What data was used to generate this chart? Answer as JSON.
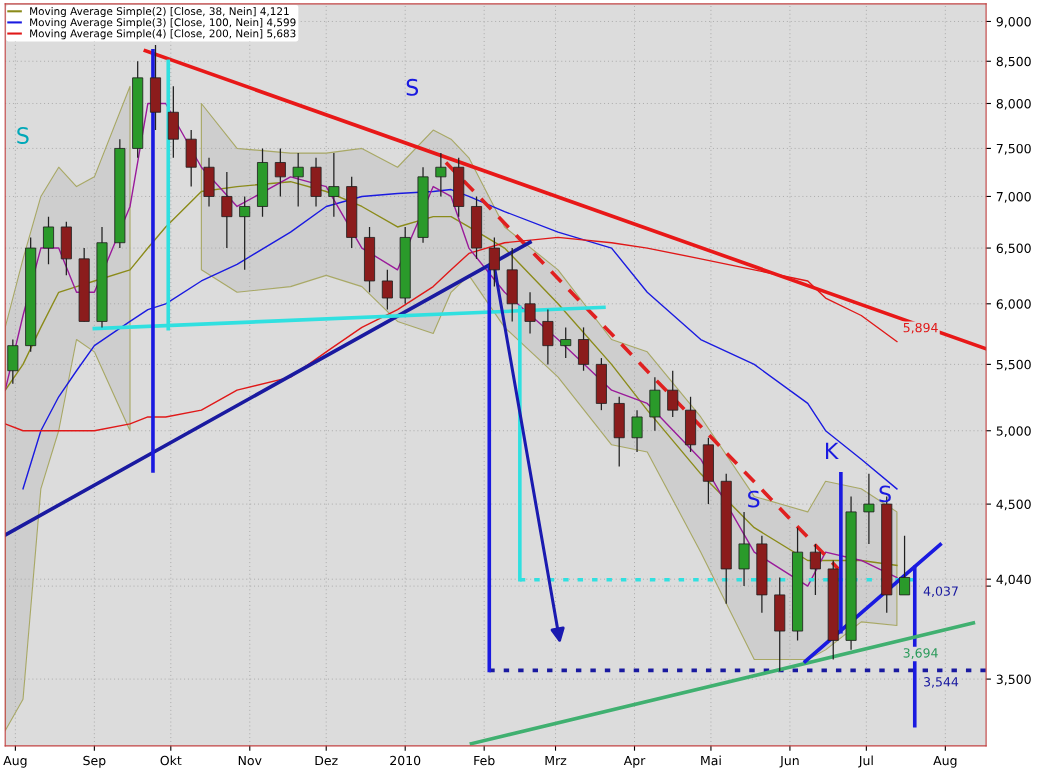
{
  "chart_data": {
    "type": "candlestick",
    "x": [
      "2009-07-31",
      "2009-08-07",
      "2009-08-14",
      "2009-08-21",
      "2009-08-28",
      "2009-09-04",
      "2009-09-11",
      "2009-09-18",
      "2009-09-25",
      "2009-10-02",
      "2009-10-09",
      "2009-10-16",
      "2009-10-23",
      "2009-10-30",
      "2009-11-06",
      "2009-11-13",
      "2009-11-20",
      "2009-11-27",
      "2009-12-04",
      "2009-12-11",
      "2009-12-18",
      "2009-12-25",
      "2010-01-01",
      "2010-01-08",
      "2010-01-15",
      "2010-01-22",
      "2010-01-29",
      "2010-02-05",
      "2010-02-12",
      "2010-02-19",
      "2010-02-26",
      "2010-03-05",
      "2010-03-12",
      "2010-03-19",
      "2010-03-26",
      "2010-04-02",
      "2010-04-09",
      "2010-04-16",
      "2010-04-23",
      "2010-04-30",
      "2010-05-07",
      "2010-05-14",
      "2010-05-21",
      "2010-05-28",
      "2010-06-04",
      "2010-06-11",
      "2010-06-18",
      "2010-06-25",
      "2010-07-02",
      "2010-07-09",
      "2010-07-16"
    ],
    "ohlc": [
      [
        5450,
        5700,
        5350,
        5650
      ],
      [
        5650,
        6600,
        5600,
        6500
      ],
      [
        6500,
        6800,
        6350,
        6700
      ],
      [
        6700,
        6750,
        6250,
        6400
      ],
      [
        6400,
        6500,
        5850,
        5850
      ],
      [
        5850,
        6700,
        5800,
        6550
      ],
      [
        6550,
        7600,
        6500,
        7500
      ],
      [
        7500,
        8500,
        7400,
        8300
      ],
      [
        8300,
        8700,
        7700,
        7900
      ],
      [
        7900,
        8200,
        7400,
        7600
      ],
      [
        7600,
        7700,
        7100,
        7300
      ],
      [
        7300,
        7400,
        6900,
        7000
      ],
      [
        7000,
        7250,
        6500,
        6800
      ],
      [
        6800,
        7000,
        6300,
        6900
      ],
      [
        6900,
        7500,
        6800,
        7350
      ],
      [
        7350,
        7500,
        7000,
        7200
      ],
      [
        7200,
        7450,
        6900,
        7300
      ],
      [
        7300,
        7400,
        6900,
        7000
      ],
      [
        7000,
        7450,
        6800,
        7100
      ],
      [
        7100,
        7200,
        6500,
        6600
      ],
      [
        6600,
        6700,
        6100,
        6200
      ],
      [
        6200,
        6300,
        5950,
        6050
      ],
      [
        6050,
        6700,
        6000,
        6600
      ],
      [
        6600,
        7300,
        6550,
        7200
      ],
      [
        7200,
        7450,
        7000,
        7300
      ],
      [
        7300,
        7400,
        6800,
        6900
      ],
      [
        6900,
        7000,
        6400,
        6500
      ],
      [
        6500,
        6600,
        6150,
        6300
      ],
      [
        6300,
        6500,
        5850,
        6000
      ],
      [
        6000,
        6100,
        5750,
        5850
      ],
      [
        5850,
        5950,
        5500,
        5650
      ],
      [
        5650,
        5800,
        5550,
        5700
      ],
      [
        5700,
        5800,
        5450,
        5500
      ],
      [
        5500,
        5550,
        5150,
        5200
      ],
      [
        5200,
        5250,
        4750,
        4950
      ],
      [
        4950,
        5150,
        4850,
        5100
      ],
      [
        5100,
        5400,
        5000,
        5300
      ],
      [
        5300,
        5450,
        5100,
        5150
      ],
      [
        5150,
        5250,
        4850,
        4900
      ],
      [
        4900,
        4950,
        4500,
        4650
      ],
      [
        4650,
        4700,
        3900,
        4100
      ],
      [
        4100,
        4450,
        4000,
        4250
      ],
      [
        4250,
        4300,
        3850,
        3950
      ],
      [
        3950,
        4050,
        3540,
        3750
      ],
      [
        3750,
        4350,
        3700,
        4200
      ],
      [
        4200,
        4250,
        3950,
        4100
      ],
      [
        4100,
        4150,
        3600,
        3700
      ],
      [
        3700,
        4550,
        3650,
        4450
      ],
      [
        4450,
        4700,
        4250,
        4500
      ],
      [
        4500,
        4550,
        3850,
        3950
      ],
      [
        3950,
        4300,
        3950,
        4050
      ]
    ],
    "colors": [
      "#2a9a2a",
      "#2a9a2a",
      "#2a9a2a",
      "#8b1c1c",
      "#8b1c1c",
      "#2a9a2a",
      "#2a9a2a",
      "#2a9a2a",
      "#8b1c1c",
      "#8b1c1c",
      "#8b1c1c",
      "#8b1c1c",
      "#8b1c1c",
      "#2a9a2a",
      "#2a9a2a",
      "#8b1c1c",
      "#2a9a2a",
      "#8b1c1c",
      "#2a9a2a",
      "#8b1c1c",
      "#8b1c1c",
      "#8b1c1c",
      "#2a9a2a",
      "#2a9a2a",
      "#2a9a2a",
      "#8b1c1c",
      "#8b1c1c",
      "#8b1c1c",
      "#8b1c1c",
      "#8b1c1c",
      "#8b1c1c",
      "#2a9a2a",
      "#8b1c1c",
      "#8b1c1c",
      "#8b1c1c",
      "#2a9a2a",
      "#2a9a2a",
      "#8b1c1c",
      "#8b1c1c",
      "#8b1c1c",
      "#8b1c1c",
      "#2a9a2a",
      "#8b1c1c",
      "#8b1c1c",
      "#2a9a2a",
      "#8b1c1c",
      "#8b1c1c",
      "#2a9a2a",
      "#2a9a2a",
      "#8b1c1c",
      "#2a9a2a"
    ],
    "series": [
      {
        "type": "line",
        "name": "Moving Average Simple(2) [Close, 38, Nein] 4,121",
        "color": "#8b8b1a",
        "x": [
          "2009-07-28",
          "2009-08-04",
          "2009-08-11",
          "2009-08-18",
          "2009-08-25",
          "2009-09-01",
          "2009-09-15",
          "2009-09-22",
          "2009-09-29",
          "2009-10-13",
          "2009-10-27",
          "2009-11-17",
          "2009-12-01",
          "2009-12-15",
          "2009-12-29",
          "2010-01-12",
          "2010-01-19",
          "2010-01-26",
          "2010-02-09",
          "2010-03-02",
          "2010-03-23",
          "2010-04-06",
          "2010-04-27",
          "2010-05-18",
          "2010-06-08",
          "2010-06-15",
          "2010-06-29",
          "2010-07-13"
        ],
        "values": [
          5300,
          5500,
          5800,
          6100,
          6150,
          6200,
          6300,
          6500,
          6700,
          7050,
          7100,
          7150,
          7050,
          6900,
          6700,
          6800,
          6800,
          6700,
          6500,
          6000,
          5500,
          5150,
          4700,
          4350,
          4150,
          4150,
          4150,
          4121
        ],
        "upper": [
          5800,
          6400,
          7000,
          7300,
          7100,
          7200,
          8200,
          null,
          null,
          8000,
          7500,
          7450,
          7450,
          7500,
          7300,
          7700,
          7600,
          7400,
          6700,
          6300,
          5700,
          5600,
          5100,
          4550,
          4450,
          4650,
          4600,
          4450
        ],
        "lower": [
          3250,
          3400,
          4600,
          5000,
          5700,
          5600,
          5000,
          null,
          null,
          6300,
          6100,
          6150,
          6250,
          6150,
          5850,
          5750,
          6100,
          6250,
          5800,
          5400,
          4900,
          4850,
          4200,
          3600,
          3600,
          3650,
          3800,
          3780
        ]
      },
      {
        "type": "line",
        "name": "Moving Average Simple(3) [Close, 100, Nein] 4,599",
        "color": "#1a1ae0",
        "x": [
          "2009-08-04",
          "2009-08-11",
          "2009-08-18",
          "2009-08-25",
          "2009-09-01",
          "2009-09-15",
          "2009-09-22",
          "2009-09-29",
          "2009-10-13",
          "2009-10-27",
          "2009-11-17",
          "2009-12-01",
          "2009-12-15",
          "2009-12-29",
          "2010-01-12",
          "2010-01-19",
          "2010-01-26",
          "2010-02-09",
          "2010-03-02",
          "2010-03-23",
          "2010-04-06",
          "2010-04-27",
          "2010-05-18",
          "2010-06-08",
          "2010-06-15",
          "2010-06-29",
          "2010-07-13"
        ],
        "values": [
          4600,
          5000,
          5250,
          5450,
          5650,
          5850,
          5950,
          6000,
          6200,
          6350,
          6650,
          6900,
          7000,
          7030,
          7050,
          7070,
          7000,
          6850,
          6650,
          6500,
          6100,
          5700,
          5500,
          5200,
          5000,
          4800,
          4599
        ]
      },
      {
        "type": "line",
        "name": "Moving Average Simple(4) [Close, 200, Nein] 5,683",
        "color": "#e01818",
        "x": [
          "2009-07-28",
          "2009-08-04",
          "2009-08-11",
          "2009-08-18",
          "2009-08-25",
          "2009-09-01",
          "2009-09-15",
          "2009-09-22",
          "2009-09-29",
          "2009-10-13",
          "2009-10-27",
          "2009-11-17",
          "2009-12-01",
          "2009-12-15",
          "2009-12-29",
          "2010-01-12",
          "2010-01-19",
          "2010-01-26",
          "2010-02-09",
          "2010-03-02",
          "2010-03-23",
          "2010-04-06",
          "2010-04-27",
          "2010-05-18",
          "2010-06-08",
          "2010-06-15",
          "2010-06-29",
          "2010-07-13"
        ],
        "values": [
          5050,
          5000,
          5000,
          5000,
          5000,
          5000,
          5050,
          5100,
          5100,
          5150,
          5300,
          5400,
          5600,
          5800,
          5950,
          6150,
          6300,
          6450,
          6550,
          6600,
          6550,
          6500,
          6400,
          6300,
          6200,
          6050,
          5900,
          5683
        ]
      },
      {
        "type": "line",
        "color": "#9a1a9a",
        "x": [
          "2009-07-28",
          "2009-08-04",
          "2009-08-11",
          "2009-08-18",
          "2009-08-25",
          "2009-09-01",
          "2009-09-15",
          "2009-09-22",
          "2009-09-29",
          "2009-10-13",
          "2009-10-27",
          "2009-11-17",
          "2009-12-01",
          "2009-12-15",
          "2009-12-29",
          "2010-01-12",
          "2010-01-19",
          "2010-01-26",
          "2010-02-09",
          "2010-03-02",
          "2010-03-23",
          "2010-04-06",
          "2010-04-27",
          "2010-05-18",
          "2010-06-08",
          "2010-06-15",
          "2010-06-29",
          "2010-07-13"
        ],
        "values": [
          5300,
          5900,
          6500,
          6500,
          6100,
          6100,
          6900,
          8000,
          8000,
          7300,
          6900,
          7200,
          7100,
          6500,
          6300,
          7100,
          7000,
          6500,
          6100,
          5700,
          5300,
          5200,
          4800,
          4200,
          4000,
          4200,
          4150,
          4050
        ]
      },
      {
        "type": "line",
        "color": "#e81818",
        "x": [
          "2009-09-21",
          "2010-08-17"
        ],
        "values": [
          8630,
          5625
        ]
      },
      {
        "type": "line",
        "color": "#e02020",
        "line_style": "dashed",
        "x": [
          "2010-01-17",
          "2010-06-20"
        ],
        "values": [
          7350,
          4100
        ]
      },
      {
        "type": "line",
        "color": "#1a1aa0",
        "x": [
          "2009-07-28",
          "2010-02-19"
        ],
        "values": [
          4305,
          6555
        ]
      },
      {
        "type": "line",
        "color": "#30e0e0",
        "x": [
          "2009-09-01",
          "2010-03-20"
        ],
        "values": [
          5790,
          5970
        ]
      },
      {
        "type": "line",
        "color": "#30e0e0",
        "x": [
          "2009-09-30",
          "2009-09-30"
        ],
        "values": [
          8500,
          5790
        ]
      },
      {
        "type": "line",
        "color": "#30e0e0",
        "x": [
          "2010-02-15",
          "2010-02-15"
        ],
        "values": [
          5970,
          4037
        ]
      },
      {
        "type": "line",
        "color": "#30e0e0",
        "line_style": "dotted",
        "x": [
          "2010-02-15",
          "2010-07-20"
        ],
        "values": [
          4037,
          4037
        ]
      },
      {
        "type": "line",
        "color": "#1a1aa0",
        "line_style": "dotted",
        "x": [
          "2010-02-03",
          "2010-08-17"
        ],
        "values": [
          3544,
          3544
        ]
      },
      {
        "type": "line",
        "color": "#1a1ae0",
        "x": [
          "2009-09-24",
          "2009-09-24"
        ],
        "values": [
          8630,
          4720
        ]
      },
      {
        "type": "line",
        "color": "#1a1ae0",
        "x": [
          "2010-02-03",
          "2010-02-03"
        ],
        "values": [
          6330,
          3544
        ]
      },
      {
        "type": "line",
        "color": "#1a1ae0",
        "x": [
          "2010-06-21",
          "2010-06-21"
        ],
        "values": [
          4700,
          3747
        ]
      },
      {
        "type": "line",
        "color": "#1a1ae0",
        "x": [
          "2010-07-20",
          "2010-07-20"
        ],
        "values": [
          4110,
          3273
        ]
      },
      {
        "type": "line",
        "color": "#40b070",
        "x": [
          "2010-01-27",
          "2010-08-12"
        ],
        "values": [
          3190,
          3794
        ]
      },
      {
        "type": "line",
        "color": "#1a1ae0",
        "x": [
          "2010-06-07",
          "2010-07-30"
        ],
        "values": [
          3590,
          4246
        ]
      }
    ],
    "annotations": [
      "S",
      "S",
      "S",
      "K",
      "S",
      {
        "text": "5,894",
        "x": "2010-07-12",
        "y": 5894
      },
      {
        "text": "4,037",
        "x": "2010-07-20",
        "y": 4037
      },
      {
        "text": "3,694",
        "x": "2010-07-12",
        "y": 3694
      },
      {
        "text": "3,544",
        "x": "2010-07-20",
        "y": 3544
      }
    ],
    "xlim": [
      "2009-07-28",
      "2010-08-17"
    ],
    "xticks": [
      {
        "value": "2009-08-01",
        "label": "Aug"
      },
      {
        "value": "2009-09-01",
        "label": "Sep"
      },
      {
        "value": "2009-10-01",
        "label": "Okt"
      },
      {
        "value": "2009-11-01",
        "label": "Nov"
      },
      {
        "value": "2009-12-01",
        "label": "Dez"
      },
      {
        "value": "2010-01-01",
        "label": "2010"
      },
      {
        "value": "2010-02-01",
        "label": "Feb"
      },
      {
        "value": "2010-03-01",
        "label": "Mrz"
      },
      {
        "value": "2010-04-01",
        "label": "Apr"
      },
      {
        "value": "2010-05-01",
        "label": "Mai"
      },
      {
        "value": "2010-06-01",
        "label": "Jun"
      },
      {
        "value": "2010-07-01",
        "label": "Jul"
      },
      {
        "value": "2010-08-01",
        "label": "Aug"
      }
    ],
    "log": "y",
    "ylim": [
      3180,
      9230
    ],
    "yticks": [
      {
        "value": 3500,
        "label": "3,500"
      },
      {
        "value": 4000,
        "label": null
      },
      {
        "value": 4040,
        "label": "4,040"
      },
      {
        "value": 4500,
        "label": "4,500"
      },
      {
        "value": 5000,
        "label": "5,000"
      },
      {
        "value": 5500,
        "label": "5,500"
      },
      {
        "value": 6000,
        "label": "6,000"
      },
      {
        "value": 6500,
        "label": "6,500"
      },
      {
        "value": 7000,
        "label": "7,000"
      },
      {
        "value": 7500,
        "label": "7,500"
      },
      {
        "value": 8000,
        "label": "8,000"
      },
      {
        "value": 8500,
        "label": "8,500"
      },
      {
        "value": 9000,
        "label": "9,000"
      }
    ],
    "grid": true,
    "legend": "top left"
  }
}
